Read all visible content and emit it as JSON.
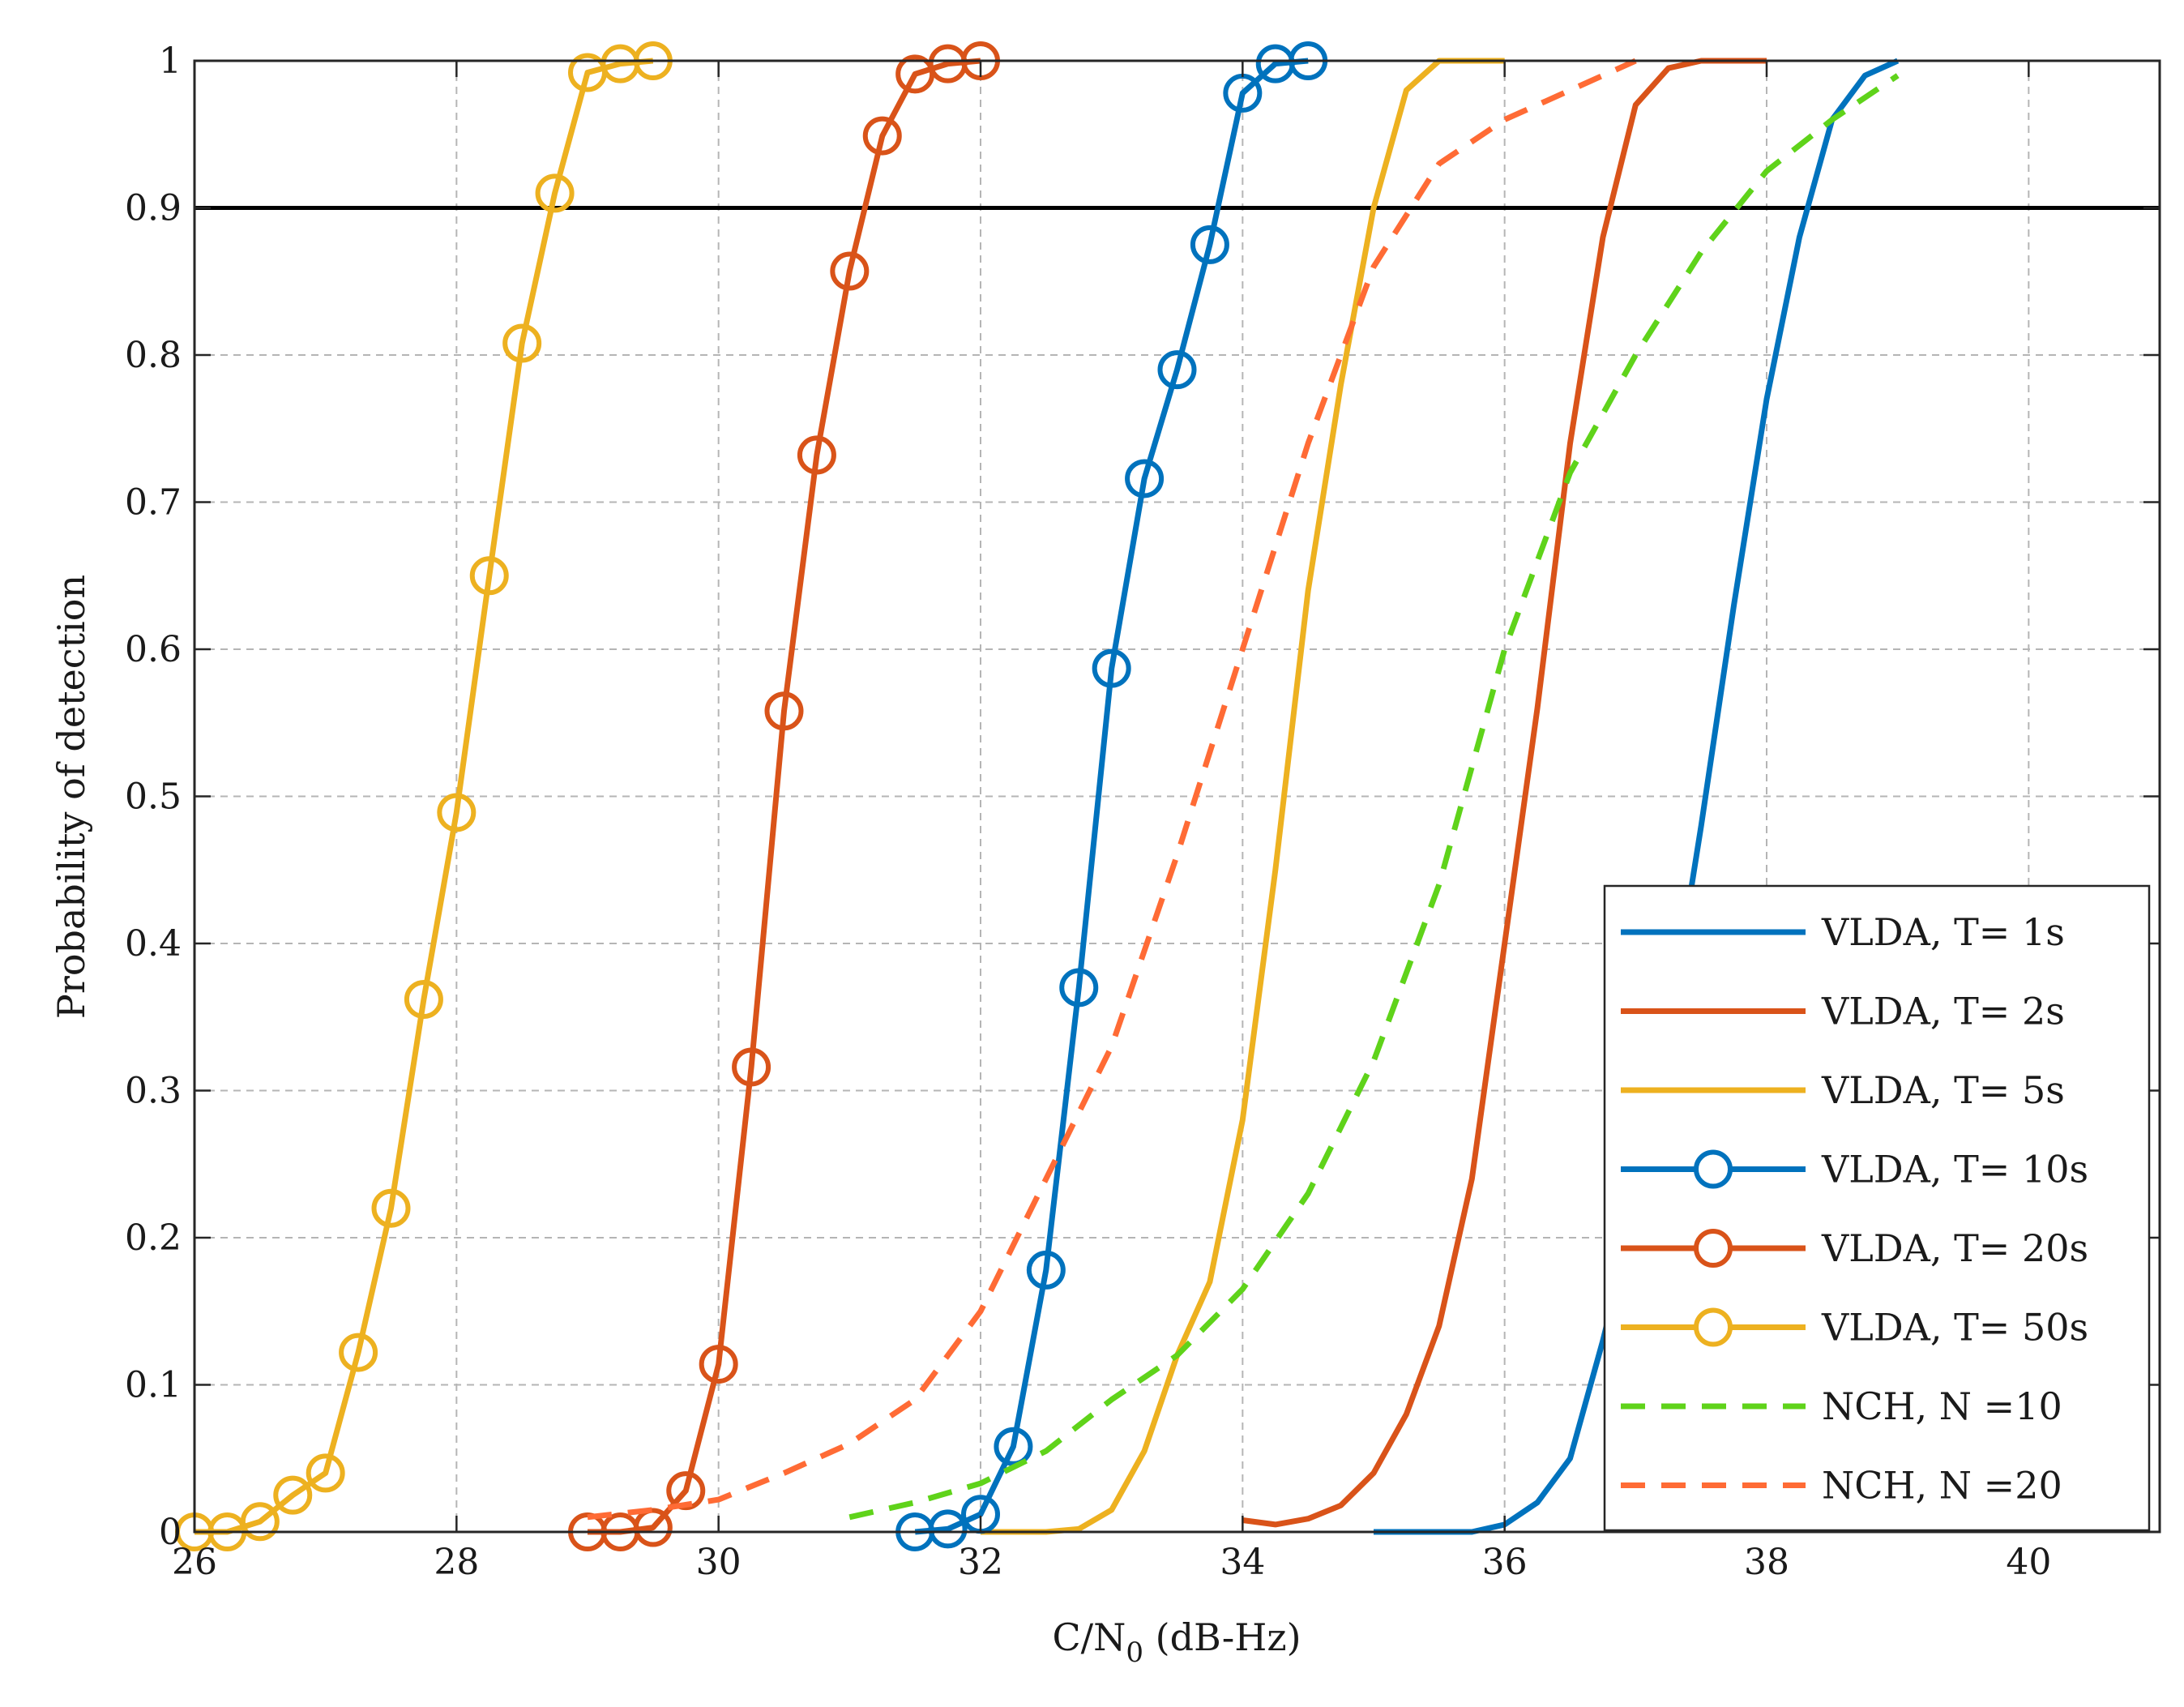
{
  "chart_data": {
    "type": "line",
    "title": "",
    "xlabel": "C/N0 (dB-Hz)",
    "xlabel_main": "C/N",
    "xlabel_sub": "0",
    "xlabel_rest": " (dB-Hz)",
    "ylabel": "Probability of detection",
    "xlim": [
      26,
      41
    ],
    "ylim": [
      0,
      1
    ],
    "xticks": [
      26,
      28,
      30,
      32,
      34,
      36,
      38,
      40
    ],
    "yticks": [
      0,
      0.1,
      0.2,
      0.3,
      0.4,
      0.5,
      0.6,
      0.7,
      0.8,
      0.9,
      1
    ],
    "xtick_labels": [
      "26",
      "28",
      "30",
      "32",
      "34",
      "36",
      "38",
      "40"
    ],
    "ytick_labels": [
      "0",
      "0.1",
      "0.2",
      "0.3",
      "0.4",
      "0.5",
      "0.6",
      "0.7",
      "0.8",
      "0.9",
      "1"
    ],
    "grid": true,
    "reference_line": {
      "y": 0.9,
      "color": "#000000"
    },
    "legend_position": "bottom-right",
    "series": [
      {
        "name": "VLDA, T= 1s",
        "color": "#0072BD",
        "style": "solid",
        "marker": "none",
        "x": [
          35,
          35.25,
          35.5,
          35.75,
          36,
          36.25,
          36.5,
          36.75,
          37,
          37.25,
          37.5,
          37.75,
          38,
          38.25,
          38.5,
          38.75,
          39
        ],
        "y": [
          0,
          0,
          0,
          0,
          0.005,
          0.02,
          0.05,
          0.13,
          0.22,
          0.34,
          0.48,
          0.63,
          0.77,
          0.88,
          0.96,
          0.99,
          1.0
        ]
      },
      {
        "name": "VLDA, T= 2s",
        "color": "#D95319",
        "style": "solid",
        "marker": "none",
        "x": [
          34,
          34.25,
          34.5,
          34.75,
          35,
          35.25,
          35.5,
          35.75,
          36,
          36.25,
          36.5,
          36.75,
          37,
          37.25,
          37.5,
          37.75,
          38
        ],
        "y": [
          0.008,
          0.005,
          0.009,
          0.018,
          0.04,
          0.08,
          0.14,
          0.24,
          0.4,
          0.56,
          0.74,
          0.88,
          0.97,
          0.995,
          1.0,
          1.0,
          1.0
        ]
      },
      {
        "name": "VLDA, T= 5s",
        "color": "#EDB120",
        "style": "solid",
        "marker": "none",
        "x": [
          32,
          32.25,
          32.5,
          32.75,
          33,
          33.25,
          33.5,
          33.75,
          34,
          34.25,
          34.5,
          34.75,
          35,
          35.25,
          35.5,
          35.75,
          36
        ],
        "y": [
          0,
          0,
          0,
          0.002,
          0.015,
          0.055,
          0.12,
          0.17,
          0.28,
          0.45,
          0.64,
          0.78,
          0.9,
          0.98,
          1.0,
          1.0,
          1.0
        ]
      },
      {
        "name": "VLDA, T= 10s",
        "color": "#0072BD",
        "style": "solid",
        "marker": "circle",
        "x": [
          31.5,
          31.75,
          32,
          32.25,
          32.5,
          32.75,
          33,
          33.25,
          33.5,
          33.75,
          34,
          34.25,
          34.5
        ],
        "y": [
          0,
          0.002,
          0.012,
          0.058,
          0.178,
          0.37,
          0.587,
          0.716,
          0.79,
          0.875,
          0.978,
          0.998,
          1.0
        ]
      },
      {
        "name": "VLDA, T= 20s",
        "color": "#D95319",
        "style": "solid",
        "marker": "circle",
        "x": [
          29,
          29.25,
          29.5,
          29.75,
          30,
          30.25,
          30.5,
          30.75,
          31,
          31.25,
          31.5,
          31.75,
          32
        ],
        "y": [
          0,
          0,
          0.003,
          0.028,
          0.114,
          0.316,
          0.558,
          0.732,
          0.857,
          0.949,
          0.991,
          0.998,
          1.0
        ]
      },
      {
        "name": "VLDA, T= 50s",
        "color": "#EDB120",
        "style": "solid",
        "marker": "circle",
        "x": [
          26,
          26.25,
          26.5,
          26.75,
          27,
          27.25,
          27.5,
          27.75,
          28,
          28.25,
          28.5,
          28.75,
          29,
          29.25,
          29.5
        ],
        "y": [
          0,
          0,
          0.007,
          0.025,
          0.04,
          0.122,
          0.22,
          0.362,
          0.489,
          0.65,
          0.808,
          0.91,
          0.992,
          0.998,
          1.0
        ]
      },
      {
        "name": "NCH, N =10",
        "color": "#5FD31A",
        "style": "dashed",
        "marker": "none",
        "x": [
          31,
          31.5,
          32,
          32.5,
          33,
          33.5,
          34,
          34.5,
          35,
          35.5,
          36,
          36.5,
          37,
          37.5,
          38,
          38.5,
          39
        ],
        "y": [
          0.01,
          0.02,
          0.033,
          0.055,
          0.09,
          0.12,
          0.165,
          0.23,
          0.32,
          0.44,
          0.6,
          0.72,
          0.8,
          0.87,
          0.925,
          0.96,
          0.99
        ]
      },
      {
        "name": "NCH, N =20",
        "color": "#FF6B35",
        "style": "dashed",
        "marker": "none",
        "x": [
          29,
          29.5,
          30,
          30.5,
          31,
          31.5,
          32,
          32.5,
          33,
          33.5,
          34,
          34.5,
          35,
          35.5,
          36,
          36.5,
          37
        ],
        "y": [
          0.01,
          0.015,
          0.022,
          0.04,
          0.06,
          0.09,
          0.15,
          0.24,
          0.33,
          0.46,
          0.6,
          0.74,
          0.86,
          0.93,
          0.96,
          0.98,
          1.0
        ]
      }
    ]
  }
}
